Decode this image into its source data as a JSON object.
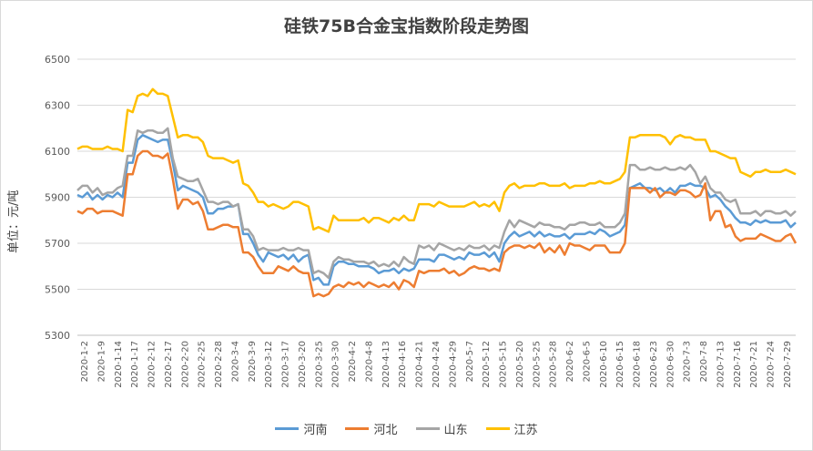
{
  "chart_data": {
    "type": "line",
    "title": "硅铁75B合金宝指数阶段走势图",
    "ylabel": "单位：元/吨",
    "xlabel": "",
    "ylim": [
      5300,
      6500
    ],
    "yticks": [
      5300,
      5500,
      5700,
      5900,
      6100,
      6300,
      6500
    ],
    "grid": true,
    "legend_position": "bottom",
    "x_tick_labels": [
      "2020-1-2",
      "2020-1-9",
      "2020-1-14",
      "2020-1-17",
      "2020-2-12",
      "2020-2-17",
      "2020-2-20",
      "2020-2-25",
      "2020-2-28",
      "2020-3-4",
      "2020-3-9",
      "2020-3-12",
      "2020-3-17",
      "2020-3-20",
      "2020-3-25",
      "2020-3-30",
      "2020-4-2",
      "2020-4-8",
      "2020-4-13",
      "2020-4-16",
      "2020-4-21",
      "2020-4-24",
      "2020-4-29",
      "2020-5-7",
      "2020-5-12",
      "2020-5-15",
      "2020-5-20",
      "2020-5-25",
      "2020-5-28",
      "2020-6-2",
      "2020-6-5",
      "2020-6-10",
      "2020-6-15",
      "2020-6-18",
      "2020-6-23",
      "2020-6-30",
      "2020-7-3",
      "2020-7-8",
      "2020-7-13",
      "2020-7-16",
      "2020-7-21",
      "2020-7-24",
      "2020-7-29"
    ],
    "series": [
      {
        "name": "河南",
        "color": "#5b9bd5",
        "values": [
          5910,
          5900,
          5920,
          5890,
          5910,
          5890,
          5910,
          5900,
          5920,
          5900,
          6050,
          6050,
          6150,
          6170,
          6160,
          6150,
          6140,
          6150,
          6150,
          6050,
          5930,
          5950,
          5940,
          5930,
          5920,
          5900,
          5830,
          5830,
          5850,
          5850,
          5860,
          5860,
          5870,
          5740,
          5740,
          5700,
          5650,
          5620,
          5660,
          5650,
          5640,
          5650,
          5630,
          5650,
          5620,
          5640,
          5650,
          5540,
          5550,
          5520,
          5520,
          5600,
          5620,
          5620,
          5610,
          5610,
          5600,
          5600,
          5600,
          5590,
          5570,
          5580,
          5580,
          5590,
          5570,
          5590,
          5580,
          5590,
          5630,
          5630,
          5630,
          5620,
          5650,
          5650,
          5640,
          5630,
          5640,
          5630,
          5660,
          5650,
          5650,
          5660,
          5640,
          5660,
          5620,
          5700,
          5730,
          5750,
          5730,
          5740,
          5750,
          5730,
          5750,
          5730,
          5740,
          5730,
          5730,
          5740,
          5720,
          5740,
          5740,
          5740,
          5750,
          5740,
          5760,
          5750,
          5730,
          5740,
          5750,
          5780,
          5940,
          5950,
          5960,
          5940,
          5940,
          5930,
          5940,
          5920,
          5940,
          5920,
          5950,
          5950,
          5960,
          5950,
          5950,
          5940,
          5900,
          5910,
          5890,
          5860,
          5840,
          5810,
          5790,
          5790,
          5780,
          5800,
          5790,
          5800,
          5790,
          5790,
          5790,
          5800,
          5770,
          5790
        ]
      },
      {
        "name": "河北",
        "color": "#ed7d31",
        "values": [
          5840,
          5830,
          5850,
          5850,
          5830,
          5840,
          5840,
          5840,
          5830,
          5820,
          6000,
          6000,
          6080,
          6100,
          6100,
          6080,
          6080,
          6070,
          6090,
          5980,
          5850,
          5890,
          5890,
          5870,
          5880,
          5840,
          5760,
          5760,
          5770,
          5780,
          5780,
          5770,
          5770,
          5660,
          5660,
          5640,
          5600,
          5570,
          5570,
          5570,
          5600,
          5590,
          5580,
          5600,
          5580,
          5570,
          5570,
          5470,
          5480,
          5470,
          5480,
          5510,
          5520,
          5510,
          5530,
          5520,
          5530,
          5510,
          5530,
          5520,
          5510,
          5520,
          5510,
          5530,
          5500,
          5540,
          5530,
          5510,
          5580,
          5570,
          5580,
          5580,
          5580,
          5590,
          5570,
          5580,
          5560,
          5570,
          5590,
          5600,
          5590,
          5590,
          5580,
          5590,
          5580,
          5660,
          5680,
          5690,
          5690,
          5680,
          5690,
          5680,
          5700,
          5660,
          5680,
          5660,
          5690,
          5650,
          5700,
          5690,
          5690,
          5680,
          5670,
          5690,
          5690,
          5690,
          5660,
          5660,
          5660,
          5700,
          5940,
          5940,
          5940,
          5940,
          5920,
          5940,
          5900,
          5920,
          5920,
          5910,
          5930,
          5930,
          5920,
          5900,
          5910,
          5960,
          5800,
          5840,
          5840,
          5770,
          5780,
          5730,
          5710,
          5720,
          5720,
          5720,
          5740,
          5730,
          5720,
          5710,
          5710,
          5730,
          5740,
          5700
        ]
      },
      {
        "name": "山东",
        "color": "#a5a5a5",
        "values": [
          5930,
          5950,
          5950,
          5920,
          5940,
          5910,
          5920,
          5920,
          5940,
          5950,
          6080,
          6080,
          6190,
          6180,
          6190,
          6190,
          6180,
          6180,
          6200,
          6070,
          5990,
          5980,
          5970,
          5970,
          5980,
          5930,
          5880,
          5880,
          5870,
          5880,
          5880,
          5860,
          5870,
          5760,
          5760,
          5730,
          5670,
          5680,
          5670,
          5670,
          5670,
          5680,
          5670,
          5670,
          5680,
          5670,
          5670,
          5570,
          5580,
          5570,
          5550,
          5620,
          5640,
          5630,
          5630,
          5620,
          5620,
          5620,
          5610,
          5620,
          5600,
          5610,
          5600,
          5620,
          5600,
          5640,
          5620,
          5610,
          5690,
          5680,
          5690,
          5670,
          5700,
          5690,
          5680,
          5670,
          5680,
          5670,
          5690,
          5680,
          5680,
          5690,
          5670,
          5690,
          5680,
          5750,
          5800,
          5770,
          5800,
          5790,
          5780,
          5770,
          5790,
          5780,
          5780,
          5770,
          5770,
          5760,
          5780,
          5780,
          5790,
          5790,
          5780,
          5780,
          5790,
          5770,
          5770,
          5770,
          5790,
          5830,
          6040,
          6040,
          6020,
          6020,
          6030,
          6020,
          6020,
          6030,
          6020,
          6020,
          6030,
          6020,
          6040,
          6010,
          5960,
          5990,
          5940,
          5920,
          5920,
          5890,
          5880,
          5890,
          5830,
          5830,
          5830,
          5840,
          5820,
          5840,
          5840,
          5830,
          5830,
          5840,
          5820,
          5840
        ]
      },
      {
        "name": "江苏",
        "color": "#ffc000",
        "values": [
          6110,
          6120,
          6120,
          6110,
          6110,
          6110,
          6120,
          6110,
          6110,
          6100,
          6280,
          6270,
          6340,
          6350,
          6340,
          6370,
          6350,
          6350,
          6340,
          6250,
          6160,
          6170,
          6170,
          6160,
          6160,
          6140,
          6080,
          6070,
          6070,
          6070,
          6060,
          6050,
          6060,
          5960,
          5950,
          5920,
          5880,
          5880,
          5860,
          5870,
          5860,
          5850,
          5860,
          5880,
          5880,
          5870,
          5860,
          5760,
          5770,
          5760,
          5750,
          5820,
          5800,
          5800,
          5800,
          5800,
          5800,
          5810,
          5790,
          5810,
          5810,
          5800,
          5790,
          5810,
          5800,
          5820,
          5800,
          5800,
          5870,
          5870,
          5870,
          5860,
          5880,
          5870,
          5860,
          5860,
          5860,
          5860,
          5870,
          5880,
          5860,
          5870,
          5860,
          5880,
          5840,
          5920,
          5950,
          5960,
          5940,
          5950,
          5950,
          5950,
          5960,
          5960,
          5950,
          5950,
          5950,
          5960,
          5940,
          5950,
          5950,
          5950,
          5960,
          5960,
          5970,
          5960,
          5960,
          5970,
          5980,
          6010,
          6160,
          6160,
          6170,
          6170,
          6170,
          6170,
          6170,
          6160,
          6130,
          6160,
          6170,
          6160,
          6160,
          6150,
          6150,
          6150,
          6100,
          6100,
          6090,
          6080,
          6070,
          6070,
          6010,
          6000,
          5990,
          6010,
          6010,
          6020,
          6010,
          6010,
          6010,
          6020,
          6010,
          6000
        ]
      }
    ]
  }
}
